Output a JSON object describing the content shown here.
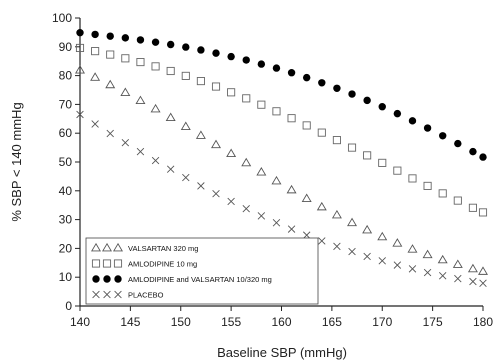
{
  "chart_data": {
    "type": "scatter",
    "xlabel": "Baseline SBP (mmHg)",
    "ylabel": "% SBP < 140 mmHg",
    "xlim": [
      140,
      180
    ],
    "ylim": [
      0,
      100
    ],
    "x_ticks": [
      140,
      145,
      150,
      155,
      160,
      165,
      170,
      175,
      180
    ],
    "y_ticks": [
      0,
      10,
      20,
      30,
      40,
      50,
      60,
      70,
      80,
      90,
      100
    ],
    "grid": false,
    "legend_position": "bottom-left",
    "x": [
      140,
      141.5,
      143,
      144.5,
      146,
      147.5,
      149,
      150.5,
      152,
      153.5,
      155,
      156.5,
      158,
      159.5,
      161,
      162.5,
      164,
      165.5,
      167,
      168.5,
      170,
      171.5,
      173,
      174.5,
      176,
      177.5,
      179,
      180
    ],
    "series": [
      {
        "name": "VALSARTAN 320 mg",
        "marker": "triangle",
        "color": "#555555",
        "values": [
          81.9,
          79.4,
          76.8,
          74.1,
          71.3,
          68.4,
          65.4,
          62.3,
          59.2,
          56.0,
          52.9,
          49.7,
          46.5,
          43.4,
          40.3,
          37.3,
          34.4,
          31.6,
          28.9,
          26.4,
          24.0,
          21.8,
          19.7,
          17.8,
          16.0,
          14.4,
          12.9,
          12.0
        ]
      },
      {
        "name": "AMLODIPINE 10 mg",
        "marker": "square",
        "color": "#666666",
        "values": [
          89.6,
          88.5,
          87.3,
          86.0,
          84.7,
          83.2,
          81.6,
          79.9,
          78.1,
          76.2,
          74.2,
          72.1,
          69.9,
          67.6,
          65.2,
          62.7,
          60.2,
          57.6,
          55.0,
          52.3,
          49.7,
          47.0,
          44.3,
          41.7,
          39.1,
          36.6,
          34.1,
          32.5
        ]
      },
      {
        "name": "AMLODIPINE and VALSARTAN 10/320 mg",
        "marker": "circle",
        "color": "#000000",
        "values": [
          94.9,
          94.3,
          93.7,
          93.1,
          92.4,
          91.6,
          90.8,
          89.9,
          88.9,
          87.8,
          86.6,
          85.4,
          84.0,
          82.6,
          81.0,
          79.3,
          77.5,
          75.6,
          73.6,
          71.4,
          69.2,
          66.8,
          64.3,
          61.8,
          59.1,
          56.4,
          53.6,
          51.7
        ]
      },
      {
        "name": "PLACEBO",
        "marker": "x",
        "color": "#555555",
        "values": [
          66.5,
          63.2,
          59.9,
          56.7,
          53.6,
          50.5,
          47.5,
          44.6,
          41.7,
          39.0,
          36.3,
          33.8,
          31.3,
          28.9,
          26.7,
          24.6,
          22.6,
          20.7,
          18.9,
          17.2,
          15.7,
          14.2,
          12.9,
          11.6,
          10.5,
          9.5,
          8.5,
          7.9
        ]
      }
    ]
  }
}
